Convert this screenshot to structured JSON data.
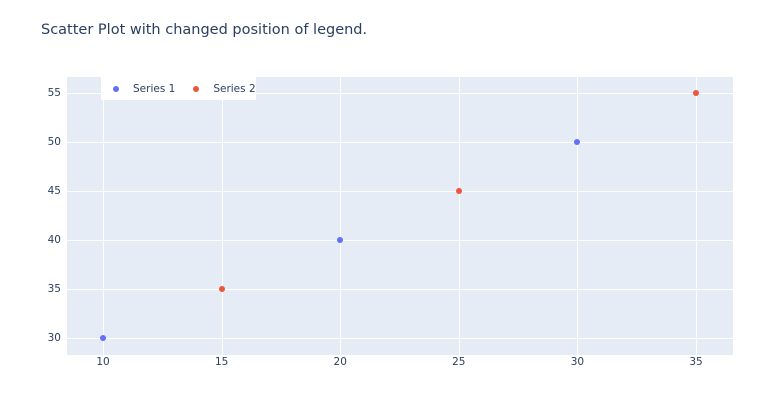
{
  "chart_data": {
    "type": "scatter",
    "title": "Scatter Plot with changed position of legend.",
    "xlabel": "",
    "ylabel": "",
    "xlim": [
      8.48,
      36.56
    ],
    "ylim": [
      28.27,
      56.63
    ],
    "x_ticks": [
      10,
      15,
      20,
      25,
      30,
      35
    ],
    "y_ticks": [
      30,
      35,
      40,
      45,
      50,
      55
    ],
    "grid": true,
    "legend_position": "top-left inside plot",
    "background": "#E5ECF6",
    "series": [
      {
        "name": "Series 1",
        "color": "#636efa",
        "x": [
          10,
          20,
          30
        ],
        "y": [
          30,
          40,
          50
        ]
      },
      {
        "name": "Series 2",
        "color": "#EF553B",
        "x": [
          15,
          25,
          35
        ],
        "y": [
          35,
          45,
          55
        ]
      }
    ]
  },
  "title": "Scatter Plot with changed position of legend.",
  "legend": {
    "items": [
      {
        "label": "Series 1",
        "color": "#636efa"
      },
      {
        "label": "Series 2",
        "color": "#EF553B"
      }
    ]
  },
  "axes": {
    "x_ticks": [
      "10",
      "15",
      "20",
      "25",
      "30",
      "35"
    ],
    "y_ticks": [
      "30",
      "35",
      "40",
      "45",
      "50",
      "55"
    ]
  }
}
